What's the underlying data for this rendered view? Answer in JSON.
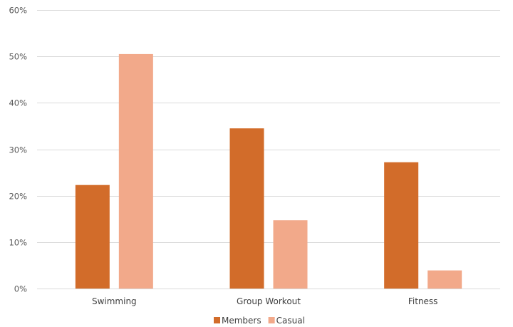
{
  "chart_data": {
    "type": "bar",
    "title": "",
    "xlabel": "",
    "ylabel": "",
    "categories": [
      "Swimming",
      "Group Workout",
      "Fitness"
    ],
    "series": [
      {
        "name": "Members",
        "values": [
          22.3,
          34.5,
          27.2
        ],
        "color": "#d26c2a"
      },
      {
        "name": "Casual",
        "values": [
          50.5,
          14.7,
          3.9
        ],
        "color": "#f2a98a"
      }
    ],
    "ylim": [
      0,
      60
    ],
    "yticks": [
      0,
      10,
      20,
      30,
      40,
      50,
      60
    ],
    "ytick_labels": [
      "0%",
      "10%",
      "20%",
      "30%",
      "40%",
      "50%",
      "60%"
    ],
    "grid": true,
    "legend_position": "bottom-center"
  }
}
